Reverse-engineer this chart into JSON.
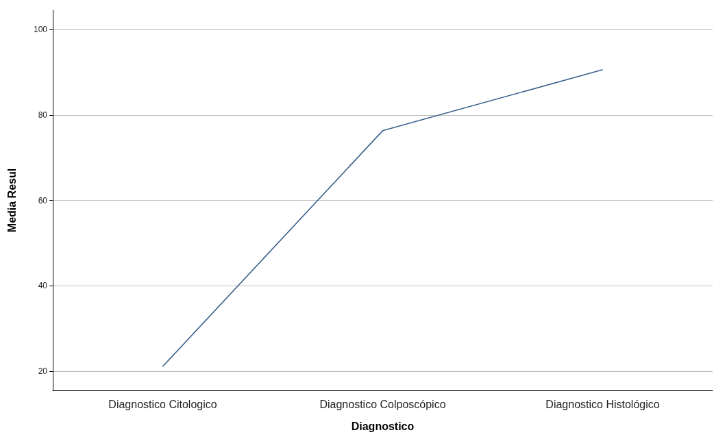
{
  "chart_data": {
    "type": "line",
    "xlabel": "Diagnostico",
    "ylabel": "Media Resul",
    "categories": [
      "Diagnostico Citologico",
      "Diagnostico Colposcópico",
      "Diagnostico Histológico"
    ],
    "series": [
      {
        "color": "#3b5f8c",
        "values": [
          21.1,
          76.3,
          90.6
        ]
      }
    ],
    "ylim": [
      15.5,
      104.5
    ],
    "yticks": [
      20,
      40,
      60,
      80,
      100
    ],
    "grid": "y",
    "marker": "none",
    "line_style": "solid"
  }
}
